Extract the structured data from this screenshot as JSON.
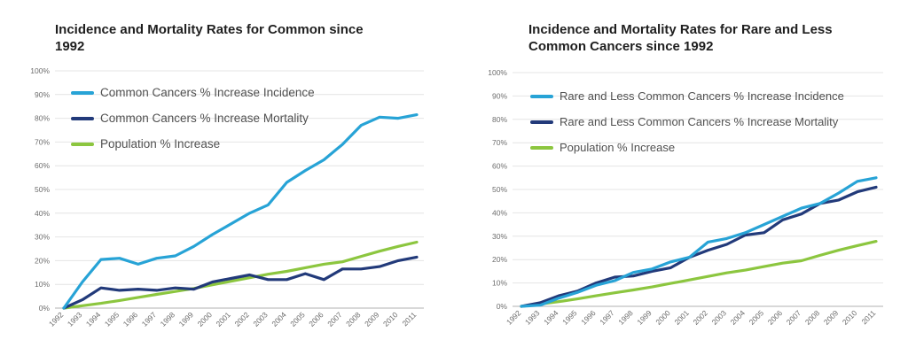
{
  "colors": {
    "incidence": "#27a3d6",
    "mortality": "#223a7a",
    "population": "#8cc63f",
    "grid": "#e4e4e4",
    "axis": "#b0b0b0",
    "tick": "#6d6d6d"
  },
  "chart_data": [
    {
      "type": "line",
      "title": "Incidence and Mortality Rates for Common since 1992",
      "xlabel": "",
      "ylabel": "",
      "x": [
        "1992",
        "1993",
        "1994",
        "1995",
        "1996",
        "1997",
        "1998",
        "1999",
        "2000",
        "2001",
        "2002",
        "2003",
        "2004",
        "2005",
        "2006",
        "2007",
        "2008",
        "2009",
        "2010",
        "2011"
      ],
      "y_ticks": [
        "0%",
        "10%",
        "20%",
        "30%",
        "40%",
        "50%",
        "60%",
        "70%",
        "80%",
        "90%",
        "100%"
      ],
      "ylim": [
        0,
        100
      ],
      "grid": true,
      "legend_position": "top-left",
      "series": [
        {
          "name": "Common Cancers % Increase Incidence",
          "color_key": "incidence",
          "values": [
            0,
            11,
            20.5,
            21,
            18.5,
            21,
            22,
            26,
            31,
            35.5,
            40,
            43.5,
            53,
            58,
            62.5,
            69,
            77,
            80.5,
            80,
            81.5
          ]
        },
        {
          "name": "Common Cancers % Increase Mortality",
          "color_key": "mortality",
          "values": [
            0,
            3.5,
            8.5,
            7.5,
            8,
            7.5,
            8.5,
            8,
            11,
            12.5,
            14,
            12,
            12,
            14.5,
            12,
            16.5,
            16.5,
            17.5,
            20,
            21.5
          ]
        },
        {
          "name": "Population % Increase",
          "color_key": "population",
          "values": [
            0,
            1,
            2,
            3.2,
            4.5,
            5.8,
            7,
            8.3,
            9.8,
            11.3,
            12.8,
            14.3,
            15.5,
            17,
            18.5,
            19.5,
            21.8,
            24,
            26,
            27.8
          ]
        }
      ]
    },
    {
      "type": "line",
      "title": "Incidence and Mortality Rates for Rare and Less Common Cancers since 1992",
      "xlabel": "",
      "ylabel": "",
      "x": [
        "1992",
        "1993",
        "1994",
        "1995",
        "1996",
        "1997",
        "1998",
        "1999",
        "2000",
        "2001",
        "2002",
        "2003",
        "2004",
        "2005",
        "2006",
        "2007",
        "2008",
        "2009",
        "2010",
        "2011"
      ],
      "y_ticks": [
        "0%",
        "10%",
        "20%",
        "30%",
        "40%",
        "50%",
        "60%",
        "70%",
        "80%",
        "90%",
        "100%"
      ],
      "ylim": [
        0,
        100
      ],
      "grid": true,
      "legend_position": "top-left",
      "series": [
        {
          "name": "Rare and Less Common Cancers % Increase Incidence",
          "color_key": "incidence",
          "values": [
            0,
            0.5,
            3.5,
            6,
            9,
            11,
            14.5,
            16,
            19,
            21,
            27.5,
            29,
            31.5,
            35,
            38.5,
            42,
            44,
            48.5,
            53.5,
            55
          ]
        },
        {
          "name": "Rare and Less Common Cancers % Increase Mortality",
          "color_key": "mortality",
          "values": [
            0,
            1.5,
            4.5,
            6.5,
            10,
            12.5,
            13,
            15,
            16.5,
            21,
            24,
            26.5,
            30.5,
            31.5,
            37,
            39.5,
            44,
            45.5,
            49,
            51
          ]
        },
        {
          "name": "Population % Increase",
          "color_key": "population",
          "values": [
            0,
            1,
            2,
            3.2,
            4.5,
            5.8,
            7,
            8.3,
            9.8,
            11.3,
            12.8,
            14.3,
            15.5,
            17,
            18.5,
            19.5,
            21.8,
            24,
            26,
            27.8
          ]
        }
      ]
    }
  ]
}
